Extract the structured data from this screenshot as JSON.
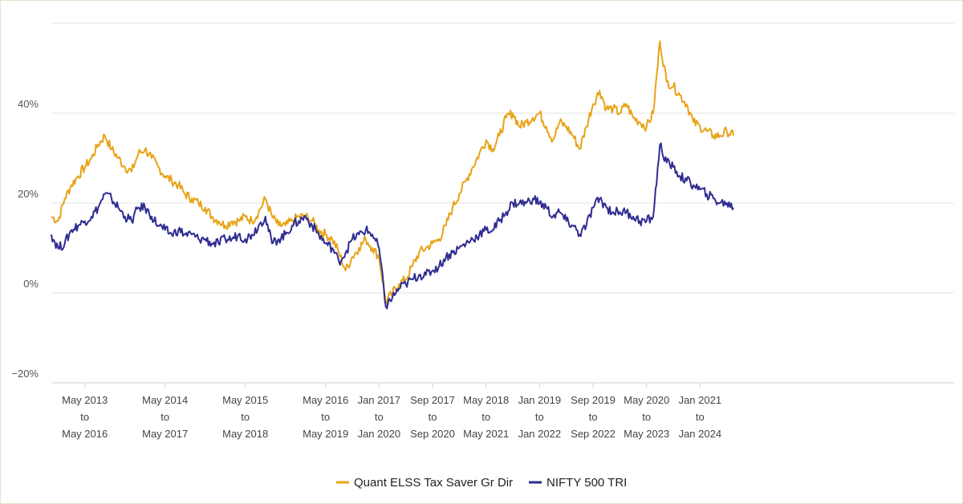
{
  "chart_data": {
    "type": "line",
    "title": "",
    "xlabel": "",
    "ylabel": "",
    "y_unit": "%",
    "ylim": [
      -20,
      60
    ],
    "yticks": [
      -20,
      0,
      20,
      40
    ],
    "ytick_labels": [
      "−20%",
      "0%",
      "20%",
      "40%"
    ],
    "grid": true,
    "legend_position": "bottom-center",
    "xlim": [
      0,
      135
    ],
    "x_ticks": [
      {
        "x": 5,
        "lines": [
          "May 2013",
          "to",
          "May 2016"
        ]
      },
      {
        "x": 17,
        "lines": [
          "May 2014",
          "to",
          "May 2017"
        ]
      },
      {
        "x": 29,
        "lines": [
          "May 2015",
          "to",
          "May 2018"
        ]
      },
      {
        "x": 41,
        "lines": [
          "May 2016",
          "to",
          "May 2019"
        ]
      },
      {
        "x": 49,
        "lines": [
          "Jan 2017",
          "to",
          "Jan 2020"
        ]
      },
      {
        "x": 57,
        "lines": [
          "Sep 2017",
          "to",
          "Sep 2020"
        ]
      },
      {
        "x": 65,
        "lines": [
          "May 2018",
          "to",
          "May 2021"
        ]
      },
      {
        "x": 73,
        "lines": [
          "Jan 2019",
          "to",
          "Jan 2022"
        ]
      },
      {
        "x": 81,
        "lines": [
          "Sep 2019",
          "to",
          "Sep 2022"
        ]
      },
      {
        "x": 89,
        "lines": [
          "May 2020",
          "to",
          "May 2023"
        ]
      },
      {
        "x": 97,
        "lines": [
          "Jan 2021",
          "to",
          "Jan 2024"
        ]
      }
    ],
    "series": [
      {
        "name": "Quant ELSS Tax Saver Gr Dir",
        "color": "#e8a317",
        "points": [
          [
            0,
            17
          ],
          [
            1,
            16
          ],
          [
            2,
            21
          ],
          [
            3,
            24
          ],
          [
            4,
            26
          ],
          [
            5,
            28
          ],
          [
            6,
            30
          ],
          [
            7,
            33
          ],
          [
            8,
            35
          ],
          [
            9,
            32
          ],
          [
            10,
            30
          ],
          [
            11,
            28
          ],
          [
            12,
            27
          ],
          [
            13,
            31
          ],
          [
            14,
            32
          ],
          [
            15,
            30
          ],
          [
            16,
            28
          ],
          [
            17,
            26
          ],
          [
            18,
            25
          ],
          [
            19,
            24
          ],
          [
            20,
            22
          ],
          [
            21,
            21
          ],
          [
            22,
            20
          ],
          [
            23,
            19
          ],
          [
            24,
            17
          ],
          [
            25,
            16
          ],
          [
            26,
            15
          ],
          [
            27,
            16
          ],
          [
            28,
            16
          ],
          [
            29,
            17
          ],
          [
            30,
            16
          ],
          [
            31,
            18
          ],
          [
            32,
            21
          ],
          [
            33,
            17
          ],
          [
            34,
            15
          ],
          [
            35,
            15
          ],
          [
            36,
            16
          ],
          [
            37,
            17
          ],
          [
            38,
            17
          ],
          [
            39,
            16
          ],
          [
            40,
            14
          ],
          [
            41,
            13
          ],
          [
            42,
            12
          ],
          [
            43,
            9
          ],
          [
            44,
            5
          ],
          [
            45,
            8
          ],
          [
            46,
            10
          ],
          [
            47,
            12
          ],
          [
            48,
            10
          ],
          [
            49,
            8
          ],
          [
            50,
            -2
          ],
          [
            51,
            0
          ],
          [
            52,
            2
          ],
          [
            53,
            3
          ],
          [
            54,
            6
          ],
          [
            55,
            9
          ],
          [
            56,
            10
          ],
          [
            57,
            11
          ],
          [
            58,
            12
          ],
          [
            59,
            15
          ],
          [
            60,
            19
          ],
          [
            61,
            22
          ],
          [
            62,
            25
          ],
          [
            63,
            28
          ],
          [
            64,
            31
          ],
          [
            65,
            34
          ],
          [
            66,
            32
          ],
          [
            67,
            35
          ],
          [
            68,
            39
          ],
          [
            69,
            40
          ],
          [
            70,
            37
          ],
          [
            71,
            38
          ],
          [
            72,
            39
          ],
          [
            73,
            40
          ],
          [
            74,
            37
          ],
          [
            75,
            34
          ],
          [
            76,
            38
          ],
          [
            77,
            37
          ],
          [
            78,
            35
          ],
          [
            79,
            32
          ],
          [
            80,
            37
          ],
          [
            81,
            42
          ],
          [
            82,
            45
          ],
          [
            83,
            41
          ],
          [
            84,
            41
          ],
          [
            85,
            40
          ],
          [
            86,
            42
          ],
          [
            87,
            39
          ],
          [
            88,
            38
          ],
          [
            89,
            37
          ],
          [
            90,
            40
          ],
          [
            91,
            56
          ],
          [
            92,
            47
          ],
          [
            93,
            46
          ],
          [
            94,
            44
          ],
          [
            95,
            42
          ],
          [
            96,
            38
          ],
          [
            97,
            37
          ],
          [
            98,
            36
          ],
          [
            99,
            35
          ],
          [
            100,
            35
          ],
          [
            101,
            36
          ],
          [
            102,
            35
          ]
        ]
      },
      {
        "name": "NIFTY 500 TRI",
        "color": "#2e2d91",
        "points": [
          [
            0,
            13
          ],
          [
            1,
            10
          ],
          [
            2,
            11
          ],
          [
            3,
            14
          ],
          [
            4,
            15
          ],
          [
            5,
            16
          ],
          [
            6,
            17
          ],
          [
            7,
            19
          ],
          [
            8,
            22
          ],
          [
            9,
            21
          ],
          [
            10,
            19
          ],
          [
            11,
            17
          ],
          [
            12,
            16
          ],
          [
            13,
            19
          ],
          [
            14,
            19
          ],
          [
            15,
            17
          ],
          [
            16,
            15
          ],
          [
            17,
            14
          ],
          [
            18,
            13
          ],
          [
            19,
            14
          ],
          [
            20,
            13
          ],
          [
            21,
            13
          ],
          [
            22,
            12
          ],
          [
            23,
            12
          ],
          [
            24,
            11
          ],
          [
            25,
            11
          ],
          [
            26,
            12
          ],
          [
            27,
            12
          ],
          [
            28,
            13
          ],
          [
            29,
            12
          ],
          [
            30,
            13
          ],
          [
            31,
            15
          ],
          [
            32,
            17
          ],
          [
            33,
            11
          ],
          [
            34,
            12
          ],
          [
            35,
            13
          ],
          [
            36,
            15
          ],
          [
            37,
            16
          ],
          [
            38,
            17
          ],
          [
            39,
            15
          ],
          [
            40,
            13
          ],
          [
            41,
            11
          ],
          [
            42,
            10
          ],
          [
            43,
            7
          ],
          [
            44,
            9
          ],
          [
            45,
            12
          ],
          [
            46,
            13
          ],
          [
            47,
            14
          ],
          [
            48,
            13
          ],
          [
            49,
            10
          ],
          [
            50,
            -3
          ],
          [
            51,
            -1
          ],
          [
            52,
            1
          ],
          [
            53,
            2
          ],
          [
            54,
            3
          ],
          [
            55,
            4
          ],
          [
            56,
            4
          ],
          [
            57,
            5
          ],
          [
            58,
            6
          ],
          [
            59,
            8
          ],
          [
            60,
            9
          ],
          [
            61,
            10
          ],
          [
            62,
            11
          ],
          [
            63,
            12
          ],
          [
            64,
            13
          ],
          [
            65,
            14
          ],
          [
            66,
            14
          ],
          [
            67,
            16
          ],
          [
            68,
            18
          ],
          [
            69,
            20
          ],
          [
            70,
            20
          ],
          [
            71,
            20
          ],
          [
            72,
            21
          ],
          [
            73,
            20
          ],
          [
            74,
            19
          ],
          [
            75,
            17
          ],
          [
            76,
            18
          ],
          [
            77,
            16
          ],
          [
            78,
            15
          ],
          [
            79,
            13
          ],
          [
            80,
            15
          ],
          [
            81,
            19
          ],
          [
            82,
            21
          ],
          [
            83,
            19
          ],
          [
            84,
            18
          ],
          [
            85,
            18
          ],
          [
            86,
            18
          ],
          [
            87,
            17
          ],
          [
            88,
            16
          ],
          [
            89,
            16
          ],
          [
            90,
            17
          ],
          [
            91,
            33
          ],
          [
            92,
            29
          ],
          [
            93,
            28
          ],
          [
            94,
            26
          ],
          [
            95,
            25
          ],
          [
            96,
            24
          ],
          [
            97,
            23
          ],
          [
            98,
            22
          ],
          [
            99,
            21
          ],
          [
            100,
            20
          ],
          [
            101,
            20
          ],
          [
            102,
            19
          ]
        ]
      }
    ]
  },
  "legend": {
    "items": [
      {
        "label": "Quant ELSS Tax Saver Gr Dir",
        "color": "#e8a317"
      },
      {
        "label": "NIFTY 500 TRI",
        "color": "#2e2d91"
      }
    ]
  }
}
